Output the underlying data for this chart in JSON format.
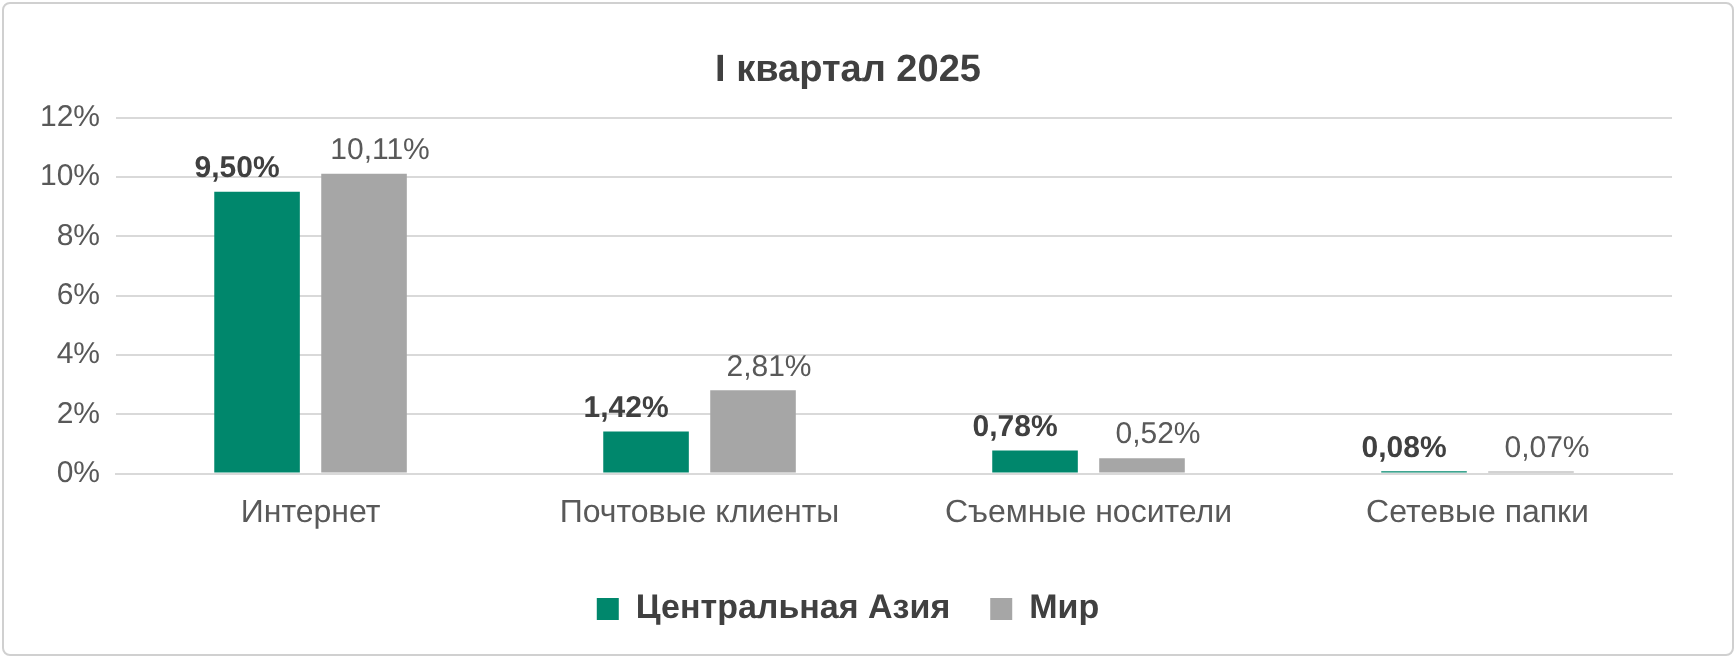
{
  "chart_data": {
    "type": "bar",
    "title": "I квартал 2025",
    "categories": [
      "Интернет",
      "Почтовые клиенты",
      "Съемные носители",
      "Сетевые папки"
    ],
    "series": [
      {
        "name": "Центральная Азия",
        "color": "#00876c",
        "values": [
          9.5,
          1.42,
          0.78,
          0.08
        ],
        "value_labels": [
          "9,50%",
          "1,42%",
          "0,78%",
          "0,08%"
        ]
      },
      {
        "name": "Мир",
        "color": "#a6a6a6",
        "values": [
          10.11,
          2.81,
          0.52,
          0.07
        ],
        "value_labels": [
          "10,11%",
          "2,81%",
          "0,52%",
          "0,07%"
        ]
      }
    ],
    "ylim": [
      0,
      12
    ],
    "yticks": [
      {
        "value": 0,
        "label": "0%"
      },
      {
        "value": 2,
        "label": "2%"
      },
      {
        "value": 4,
        "label": "4%"
      },
      {
        "value": 6,
        "label": "6%"
      },
      {
        "value": 8,
        "label": "8%"
      },
      {
        "value": 10,
        "label": "10%"
      },
      {
        "value": 12,
        "label": "12%"
      }
    ],
    "grid": "y",
    "legend": "bottom"
  }
}
